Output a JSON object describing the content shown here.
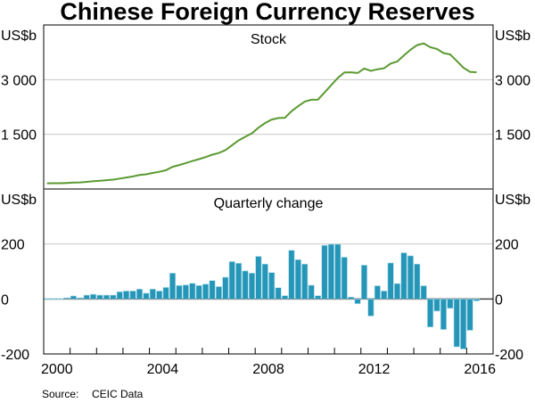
{
  "chart_data": [
    {
      "type": "line",
      "title": "Chinese Foreign Currency Reserves",
      "panel_title": "Stock",
      "ylabel_left": "US$b",
      "ylabel_right": "US$b",
      "ylim": [
        0,
        4500
      ],
      "yticks": [
        1500,
        3000
      ],
      "ytick_labels": [
        "1 500",
        "3 000"
      ],
      "grid": true,
      "line_color": "#5b9a32",
      "series": [
        {
          "name": "Stock",
          "x_start": 2000.125,
          "x_step": 0.25,
          "values": [
            157,
            158,
            160,
            166,
            175,
            180,
            195,
            212,
            228,
            243,
            258,
            286,
            316,
            346,
            384,
            403,
            440,
            471,
            515,
            610,
            659,
            711,
            769,
            819,
            875,
            941,
            988,
            1066,
            1202,
            1332,
            1434,
            1528,
            1682,
            1809,
            1906,
            1946,
            1954,
            2132,
            2273,
            2399,
            2447,
            2454,
            2648,
            2847,
            3045,
            3197,
            3202,
            3181,
            3305,
            3240,
            3285,
            3312,
            3442,
            3497,
            3662,
            3821,
            3948,
            3993,
            3888,
            3843,
            3730,
            3694,
            3514,
            3330,
            3213,
            3205
          ]
        }
      ]
    },
    {
      "type": "bar",
      "panel_title": "Quarterly change",
      "ylabel_left": "US$b",
      "ylabel_right": "US$b",
      "ylim": [
        -200,
        400
      ],
      "yticks": [
        -200,
        0,
        200
      ],
      "ytick_labels": [
        "-200",
        "0",
        "200"
      ],
      "grid": true,
      "bar_color": "#2596b8",
      "series": [
        {
          "name": "Quarterly change",
          "x_start": 2000.125,
          "x_step": 0.25,
          "values": [
            2,
            2,
            2,
            4,
            11,
            4,
            14,
            17,
            14,
            14,
            14,
            26,
            29,
            29,
            36,
            21,
            36,
            29,
            42,
            94,
            49,
            51,
            57,
            49,
            54,
            67,
            45,
            79,
            136,
            130,
            102,
            94,
            155,
            127,
            96,
            41,
            12,
            177,
            143,
            127,
            50,
            12,
            195,
            199,
            199,
            152,
            7,
            -17,
            123,
            -62,
            48,
            29,
            131,
            56,
            168,
            157,
            127,
            48,
            -102,
            -44,
            -111,
            -34,
            -174,
            -182,
            -114,
            -7
          ]
        }
      ]
    }
  ],
  "x_axis": {
    "xlim": [
      2000,
      2017
    ],
    "labels": [
      {
        "year": 2000,
        "label": "2000"
      },
      {
        "year": 2004,
        "label": "2004"
      },
      {
        "year": 2008,
        "label": "2008"
      },
      {
        "year": 2012,
        "label": "2012"
      },
      {
        "year": 2016,
        "label": "2016"
      }
    ]
  },
  "title": "Chinese Foreign Currency Reserves",
  "source": {
    "label": "Source:",
    "value": "CEIC Data"
  }
}
